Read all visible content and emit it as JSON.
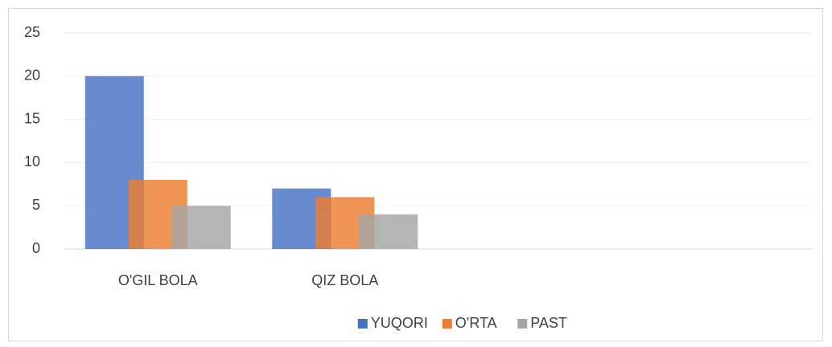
{
  "chart_data": {
    "type": "bar",
    "categories": [
      "O'GIL BOLA",
      "QIZ BOLA",
      null,
      null
    ],
    "series": [
      {
        "name": "YUQORI",
        "color": "#4472c4",
        "values": [
          20,
          7,
          null,
          null
        ]
      },
      {
        "name": "O'RTA",
        "color": "#ed7d31",
        "values": [
          8,
          6,
          null,
          null
        ]
      },
      {
        "name": "PAST",
        "color": "#a5a5a5",
        "values": [
          5,
          4,
          null,
          null
        ]
      }
    ],
    "ylim": [
      0,
      25
    ],
    "yticks": [
      0,
      5,
      10,
      15,
      20,
      25
    ],
    "grid": true,
    "legend": "bottom"
  }
}
